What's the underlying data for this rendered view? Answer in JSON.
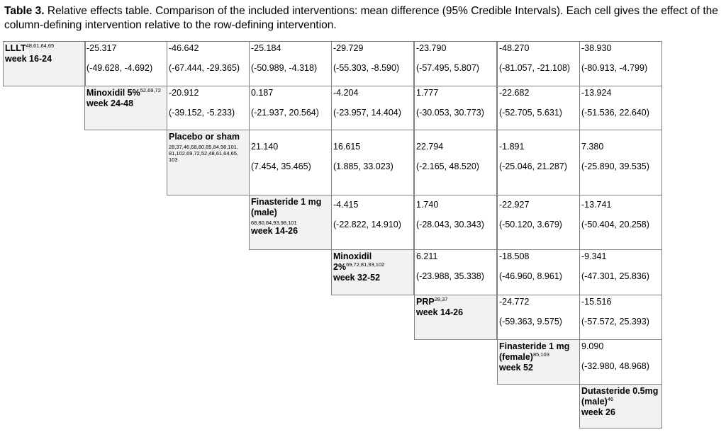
{
  "caption": {
    "label": "Table 3.",
    "text": " Relative effects table. Comparison of the included interventions: mean difference (95% Credible Intervals). Each cell gives the effect of the column-defining intervention relative to the row-defining intervention."
  },
  "interventions": [
    {
      "name": "LLLT",
      "sup": "48,61,64,65",
      "refs": "",
      "week": "week 16-24"
    },
    {
      "name": "Minoxidil 5%",
      "sup": "52,69,72",
      "refs": "",
      "week": "week 24-48"
    },
    {
      "name": "Placebo or sham",
      "sup": "",
      "refs": "28,37,46,68,80,85,84,98,101, 81,102,69,72,52,48,61,64,65, 103",
      "week": ""
    },
    {
      "name": "Finasteride 1 mg (male)",
      "sup": "",
      "refs": "68,80,84,93,98,101",
      "week": "week 14-26"
    },
    {
      "name": "Minoxidil 2%",
      "sup": "69,72,81,93,102",
      "refs": "",
      "week": "week 32-52"
    },
    {
      "name": "PRP",
      "sup": "28,37",
      "refs": "",
      "week": "week 14-26"
    },
    {
      "name": "Finasteride 1 mg (female)",
      "sup": "85,103",
      "refs": "",
      "week": "week 52"
    },
    {
      "name": "Dutasteride 0.5mg (male)",
      "sup": "46",
      "refs": "",
      "week": "week 26"
    }
  ],
  "rows": [
    [
      [
        "-25.317",
        "(-49.628, -4.692)"
      ],
      [
        "-46.642",
        "(-67.444, -29.365)"
      ],
      [
        "-25.184",
        "(-50.989, -4.318)"
      ],
      [
        "-29.729",
        "(-55.303, -8.590)"
      ],
      [
        "-23.790",
        "(-57.495, 5.807)"
      ],
      [
        "-48.270",
        "(-81.057, -21.108)"
      ],
      [
        "-38.930",
        "(-80.913, -4.799)"
      ]
    ],
    [
      [
        "-20.912",
        "(-39.152, -5.233)"
      ],
      [
        "0.187",
        "(-21.937, 20.564)"
      ],
      [
        "-4.204",
        "(-23.957, 14.404)"
      ],
      [
        "1.777",
        "(-30.053, 30.773)"
      ],
      [
        "-22.682",
        "(-52.705, 5.631)"
      ],
      [
        "-13.924",
        "(-51.536, 22.640)"
      ]
    ],
    [
      [
        "21.140",
        "(7.454, 35.465)"
      ],
      [
        "16.615",
        "(1.885, 33.023)"
      ],
      [
        "22.794",
        "(-2.165, 48.520)"
      ],
      [
        "-1.891",
        "(-25.046, 21.287)"
      ],
      [
        "7.380",
        "(-25.890, 39.535)"
      ]
    ],
    [
      [
        "-4.415",
        "(-22.822, 14.910)"
      ],
      [
        "1.740",
        "(-28.043, 30.343)"
      ],
      [
        "-22.927",
        "(-50.120, 3.679)"
      ],
      [
        "-13.741",
        "(-50.404, 20.258)"
      ]
    ],
    [
      [
        "6.211",
        "(-23.988, 35.338)"
      ],
      [
        "-18.508",
        "(-46.960, 8.961)"
      ],
      [
        "-9.341",
        "(-47.301, 25.836)"
      ]
    ],
    [
      [
        "-24.772",
        "(-59.363, 9.575)"
      ],
      [
        "-15.516",
        "(-57.572, 25.393)"
      ]
    ],
    [
      [
        "9.090",
        "(-32.980, 48.968)"
      ]
    ],
    []
  ]
}
